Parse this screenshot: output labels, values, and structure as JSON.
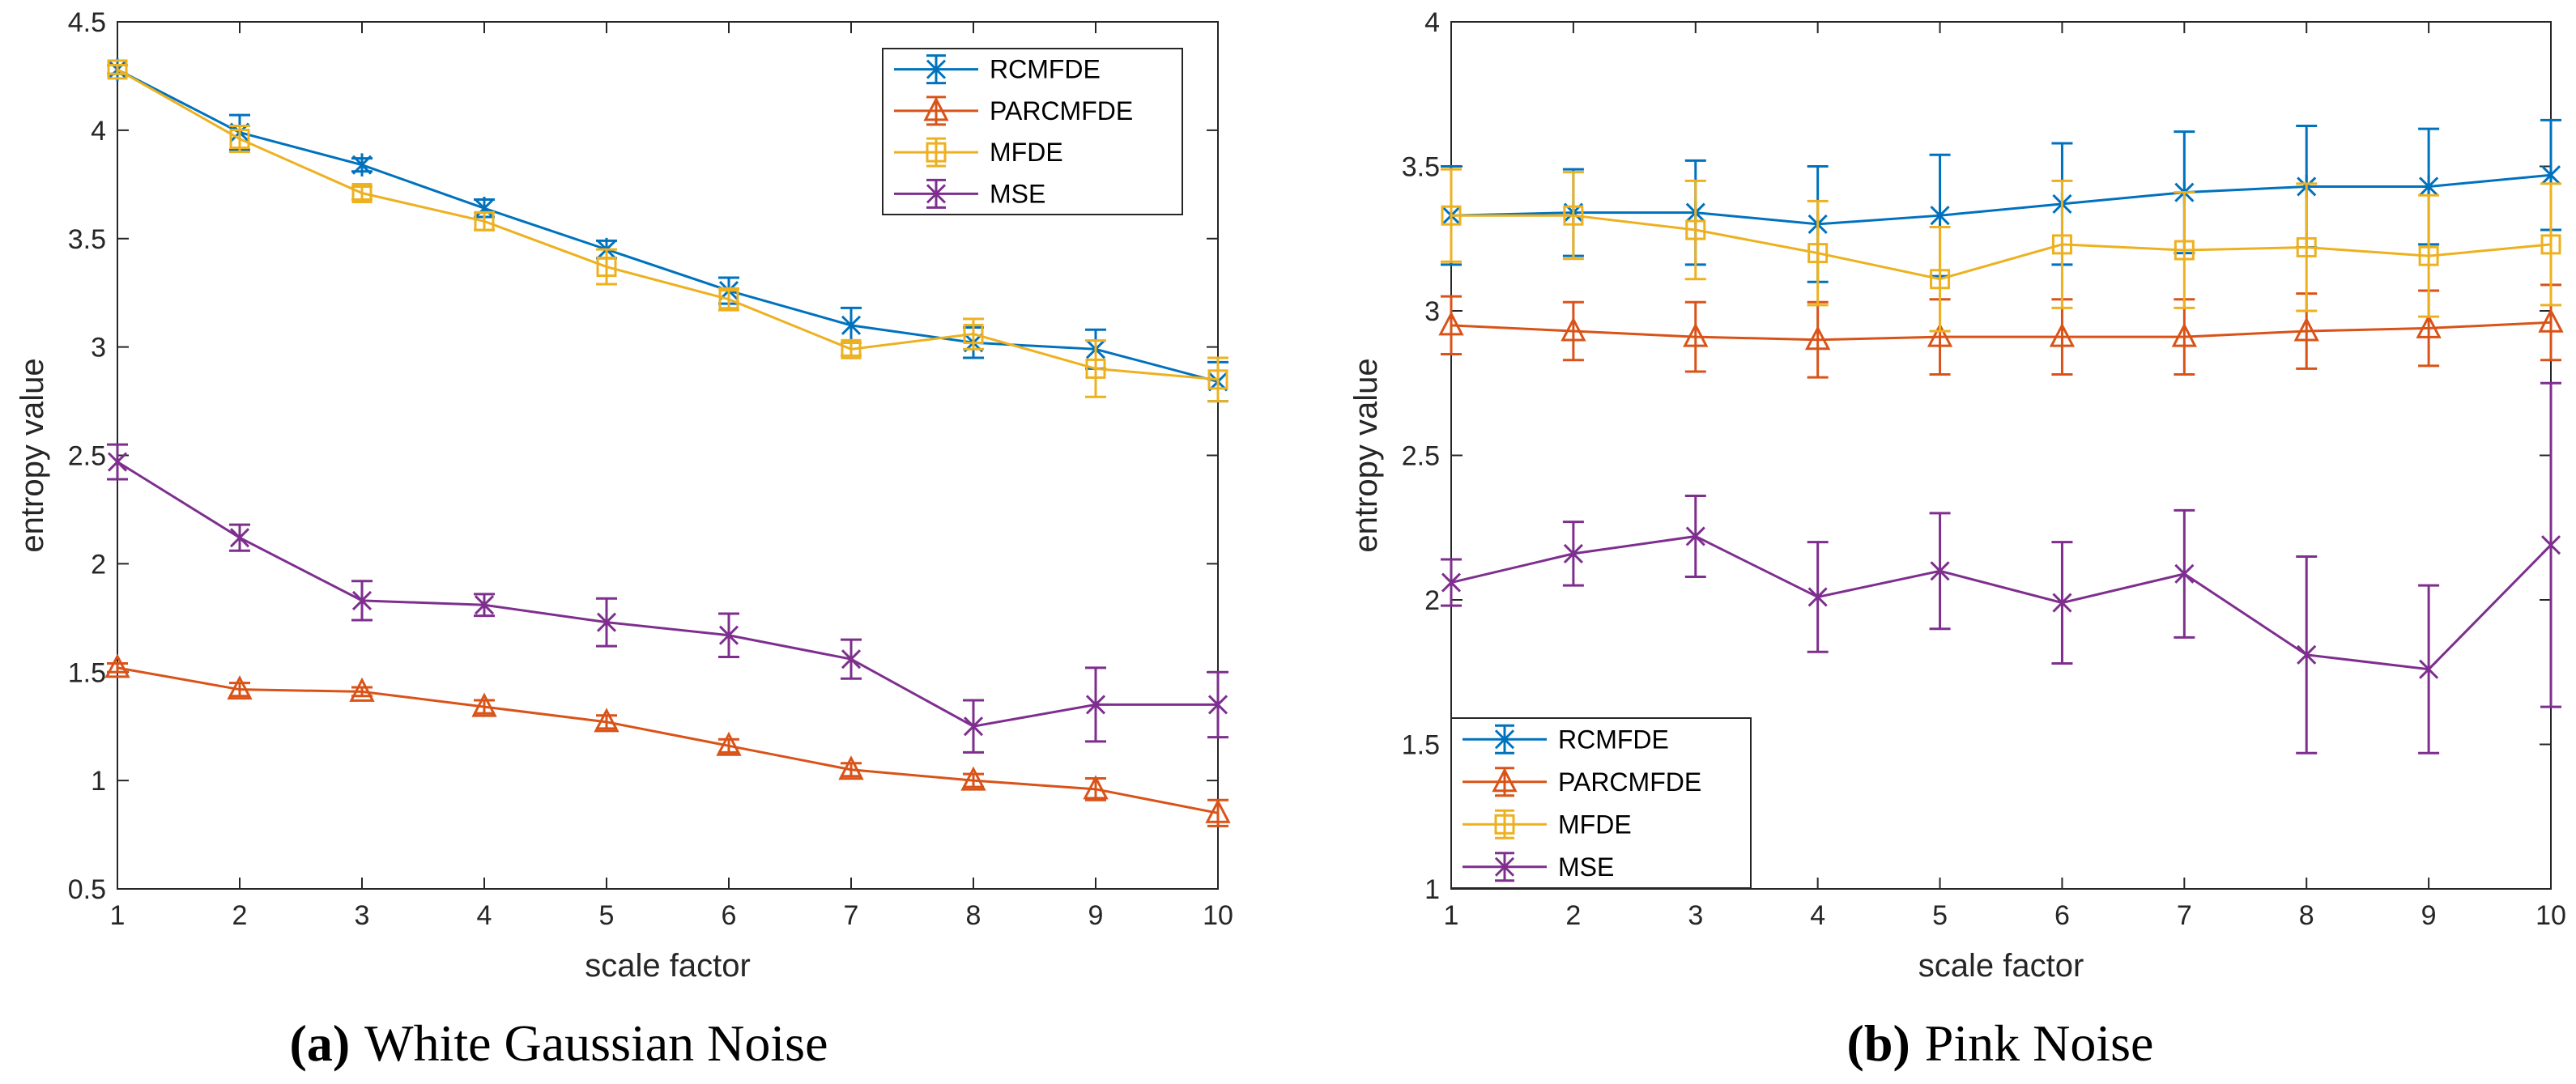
{
  "colors": {
    "RCMFDE": "#0072BD",
    "PARCMFDE": "#D95319",
    "MFDE": "#EDB120",
    "MSE": "#7E2F8E"
  },
  "chart_data": [
    {
      "type": "line",
      "caption_label": "(a)",
      "caption_text": "White Gaussian Noise",
      "xlabel": "scale factor",
      "ylabel": "entropy value",
      "xlim": [
        1,
        10
      ],
      "ylim": [
        0.5,
        4.5
      ],
      "xticks": [
        "1",
        "2",
        "3",
        "4",
        "5",
        "6",
        "7",
        "8",
        "9",
        "10"
      ],
      "yticks": [
        "0.5",
        "1",
        "1.5",
        "2",
        "2.5",
        "3",
        "3.5",
        "4",
        "4.5"
      ],
      "legend_position": "top-right",
      "x": [
        1,
        2,
        3,
        4,
        5,
        6,
        7,
        8,
        9,
        10
      ],
      "series": [
        {
          "name": "RCMFDE",
          "marker": "asterisk",
          "values": [
            4.28,
            3.99,
            3.84,
            3.64,
            3.45,
            3.26,
            3.1,
            3.02,
            2.99,
            2.84
          ],
          "errors": [
            0.02,
            0.08,
            0.03,
            0.04,
            0.04,
            0.06,
            0.08,
            0.07,
            0.09,
            0.09
          ]
        },
        {
          "name": "PARCMFDE",
          "marker": "triangle",
          "values": [
            1.52,
            1.42,
            1.41,
            1.34,
            1.27,
            1.16,
            1.05,
            1.0,
            0.96,
            0.85
          ],
          "errors": [
            0.02,
            0.03,
            0.02,
            0.03,
            0.03,
            0.03,
            0.03,
            0.03,
            0.05,
            0.06
          ]
        },
        {
          "name": "MFDE",
          "marker": "square",
          "values": [
            4.28,
            3.96,
            3.71,
            3.58,
            3.37,
            3.22,
            2.99,
            3.06,
            2.9,
            2.85
          ],
          "errors": [
            0.02,
            0.06,
            0.03,
            0.04,
            0.08,
            0.05,
            0.03,
            0.07,
            0.13,
            0.1
          ]
        },
        {
          "name": "MSE",
          "marker": "x",
          "values": [
            2.47,
            2.12,
            1.83,
            1.81,
            1.73,
            1.67,
            1.56,
            1.25,
            1.35,
            1.35
          ],
          "errors": [
            0.08,
            0.06,
            0.09,
            0.05,
            0.11,
            0.1,
            0.09,
            0.12,
            0.17,
            0.15
          ]
        }
      ]
    },
    {
      "type": "line",
      "caption_label": "(b)",
      "caption_text": "Pink Noise",
      "xlabel": "scale factor",
      "ylabel": "entropy value",
      "xlim": [
        1,
        10
      ],
      "ylim": [
        1,
        4
      ],
      "xticks": [
        "1",
        "2",
        "3",
        "4",
        "5",
        "6",
        "7",
        "8",
        "9",
        "10"
      ],
      "yticks": [
        "1",
        "1.5",
        "2",
        "2.5",
        "3",
        "3.5",
        "4"
      ],
      "legend_position": "bottom-left",
      "x": [
        1,
        2,
        3,
        4,
        5,
        6,
        7,
        8,
        9,
        10
      ],
      "series": [
        {
          "name": "RCMFDE",
          "marker": "asterisk",
          "values": [
            3.33,
            3.34,
            3.34,
            3.3,
            3.33,
            3.37,
            3.41,
            3.43,
            3.43,
            3.47
          ],
          "errors": [
            0.17,
            0.15,
            0.18,
            0.2,
            0.21,
            0.21,
            0.21,
            0.21,
            0.2,
            0.19
          ]
        },
        {
          "name": "PARCMFDE",
          "marker": "triangle",
          "values": [
            2.95,
            2.93,
            2.91,
            2.9,
            2.91,
            2.91,
            2.91,
            2.93,
            2.94,
            2.96
          ],
          "errors": [
            0.1,
            0.1,
            0.12,
            0.13,
            0.13,
            0.13,
            0.13,
            0.13,
            0.13,
            0.13
          ]
        },
        {
          "name": "MFDE",
          "marker": "square",
          "values": [
            3.33,
            3.33,
            3.28,
            3.2,
            3.11,
            3.23,
            3.21,
            3.22,
            3.19,
            3.23
          ],
          "errors": [
            0.16,
            0.15,
            0.17,
            0.18,
            0.18,
            0.22,
            0.2,
            0.22,
            0.21,
            0.21
          ]
        },
        {
          "name": "MSE",
          "marker": "x",
          "values": [
            2.06,
            2.16,
            2.22,
            2.01,
            2.1,
            1.99,
            2.09,
            1.81,
            1.76,
            2.19
          ],
          "errors": [
            0.08,
            0.11,
            0.14,
            0.19,
            0.2,
            0.21,
            0.22,
            0.34,
            0.29,
            0.56
          ]
        }
      ]
    }
  ]
}
